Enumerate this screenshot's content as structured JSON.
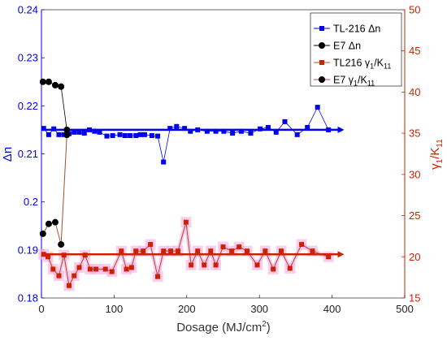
{
  "chart_data": {
    "type": "scatter",
    "xlabel_main": "Dosage (MJ/cm",
    "xlabel_sup": "2",
    "xlabel_tail": ")",
    "ylabel_left": "Δn",
    "ylabel_right_main": "γ",
    "ylabel_right_sub1": "1",
    "ylabel_right_mid": "/K",
    "ylabel_right_sub2": "11",
    "xlim": [
      0,
      500
    ],
    "ylim_left": [
      0.18,
      0.24
    ],
    "ylim_right": [
      15,
      50
    ],
    "x_ticks": [
      "0",
      "100",
      "200",
      "300",
      "400",
      "500"
    ],
    "yl_ticks": [
      "0.18",
      "0.19",
      "0.2",
      "0.21",
      "0.22",
      "0.23",
      "0.24"
    ],
    "yr_ticks": [
      "15",
      "20",
      "25",
      "30",
      "35",
      "40",
      "45",
      "50"
    ],
    "legend_position": "top-right",
    "colors": {
      "blue": "#0000ee",
      "red": "#cc2200",
      "black": "#000000",
      "brown": "#a0522d",
      "pink_halo": "#ffb6e6"
    },
    "series": [
      {
        "name": "TL-216 Δn",
        "legend": {
          "main": "TL-216 Δn"
        },
        "axis": "left",
        "color": "#0000ee",
        "marker": "square",
        "x": [
          3,
          10,
          17,
          24,
          31,
          38,
          45,
          52,
          59,
          66,
          73,
          80,
          90,
          98,
          108,
          115,
          122,
          130,
          136,
          142,
          152,
          160,
          168,
          177,
          186,
          197,
          205,
          215,
          228,
          240,
          251,
          263,
          275,
          288,
          301,
          312,
          323,
          335,
          352,
          366,
          380,
          395
        ],
        "y": [
          0.2153,
          0.214,
          0.2152,
          0.214,
          0.214,
          0.2142,
          0.2145,
          0.2145,
          0.2143,
          0.215,
          0.2147,
          0.2145,
          0.2137,
          0.2138,
          0.214,
          0.2138,
          0.2138,
          0.2138,
          0.214,
          0.214,
          0.2138,
          0.2137,
          0.2083,
          0.2153,
          0.2157,
          0.2153,
          0.2147,
          0.215,
          0.2147,
          0.2147,
          0.2147,
          0.2143,
          0.2147,
          0.2143,
          0.2152,
          0.2155,
          0.2145,
          0.2167,
          0.214,
          0.2155,
          0.2197,
          0.215
        ],
        "trend": {
          "x": [
            0,
            410
          ],
          "y": [
            0.215,
            0.215
          ]
        }
      },
      {
        "name": "E7 Δn",
        "legend": {
          "main": "E7 Δn"
        },
        "axis": "left",
        "color": "#000000",
        "marker": "circle",
        "x": [
          2,
          10,
          19,
          27,
          35
        ],
        "y": [
          0.225,
          0.225,
          0.2243,
          0.224,
          0.215
        ]
      },
      {
        "name": "TL216 γ1/K11",
        "legend": {
          "main": "TL216 γ",
          "sub": "1",
          "mid": "/K",
          "sub2": "11"
        },
        "axis": "right",
        "color": "#cc2200",
        "marker": "square",
        "x": [
          3,
          9,
          16,
          24,
          31,
          38,
          45,
          52,
          60,
          67,
          75,
          88,
          97,
          110,
          117,
          124,
          130,
          140,
          150,
          160,
          168,
          178,
          188,
          199,
          206,
          215,
          224,
          233,
          240,
          250,
          262,
          272,
          283,
          297,
          308,
          319,
          330,
          342,
          358,
          373,
          395
        ],
        "y": [
          20.3,
          20.0,
          18.5,
          17.7,
          20.2,
          16.5,
          17.7,
          18.7,
          20.2,
          18.5,
          18.5,
          18.5,
          18.2,
          20.7,
          18.5,
          18.7,
          20.7,
          20.7,
          21.5,
          17.6,
          20.7,
          20.7,
          20.7,
          24.2,
          19.0,
          20.7,
          19.0,
          20.7,
          19.0,
          21.2,
          20.7,
          21.2,
          20.7,
          19.0,
          20.7,
          18.5,
          20.7,
          18.6,
          21.5,
          20.7,
          20.0
        ],
        "trend": {
          "x": [
            0,
            410
          ],
          "y": [
            20.3,
            20.3
          ]
        }
      },
      {
        "name": "E7 γ1/K11",
        "legend": {
          "main": "E7 γ",
          "sub": "1",
          "mid": "/K",
          "sub2": "11"
        },
        "axis": "right",
        "color": "#000000",
        "marker": "circle",
        "x": [
          2,
          10,
          19,
          27,
          35
        ],
        "y": [
          22.8,
          24.0,
          24.2,
          21.5,
          34.8
        ]
      }
    ]
  }
}
